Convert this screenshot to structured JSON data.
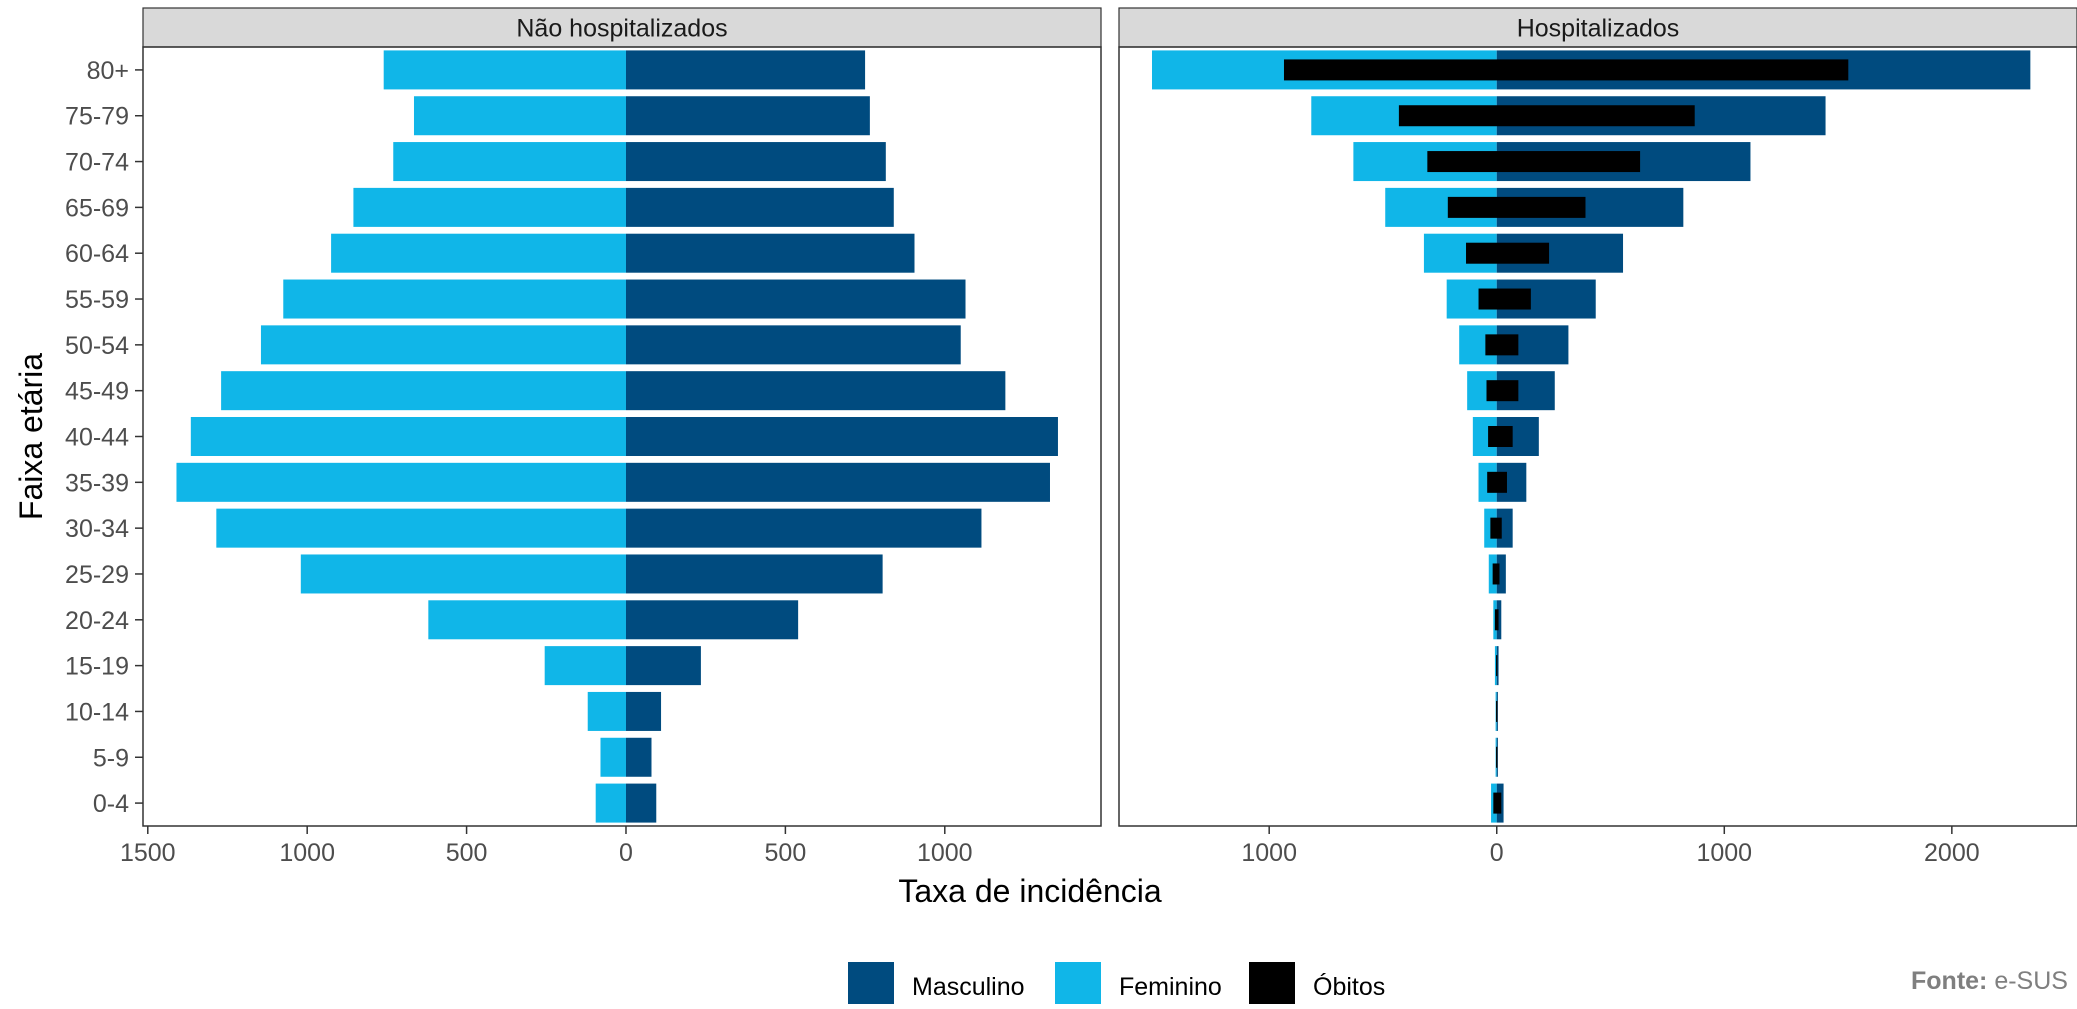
{
  "chart_data": {
    "type": "bar",
    "orientation": "horizontal",
    "layout": "population pyramid, two facets",
    "ylabel": "Faixa etária",
    "xlabel": "Taxa de incidência",
    "categories": [
      "0-4",
      "5-9",
      "10-14",
      "15-19",
      "20-24",
      "25-29",
      "30-34",
      "35-39",
      "40-44",
      "45-49",
      "50-54",
      "55-59",
      "60-64",
      "65-69",
      "70-74",
      "75-79",
      "80+"
    ],
    "legend": {
      "position": "bottom",
      "entries": [
        {
          "label": "Masculino",
          "color": "#004B7F"
        },
        {
          "label": "Feminino",
          "color": "#10B6E8"
        },
        {
          "label": "Óbitos",
          "color": "#000000"
        }
      ]
    },
    "panels": [
      {
        "title": "Não hospitalizados",
        "xlim": [
          -1515,
          1490
        ],
        "ticks": [
          -1500,
          -1000,
          -500,
          0,
          500,
          1000
        ],
        "tick_labels": [
          "1500",
          "1000",
          "500",
          "0",
          "500",
          "1000"
        ],
        "series": [
          {
            "name": "Masculino",
            "values": [
              95,
              80,
              110,
              235,
              540,
              805,
              1115,
              1330,
              1355,
              1190,
              1050,
              1065,
              905,
              840,
              815,
              765,
              750
            ]
          },
          {
            "name": "Feminino",
            "values": [
              95,
              80,
              120,
              255,
              620,
              1020,
              1285,
              1410,
              1365,
              1270,
              1145,
              1075,
              925,
              855,
              730,
              665,
              760
            ]
          }
        ]
      },
      {
        "title": "Hospitalizados",
        "xlim": [
          -1660,
          2550
        ],
        "ticks": [
          -1000,
          0,
          1000,
          2000
        ],
        "tick_labels": [
          "1000",
          "0",
          "1000",
          "2000"
        ],
        "series": [
          {
            "name": "Masculino",
            "values": [
              30,
              5,
              5,
              8,
              20,
              40,
              70,
              130,
              185,
              255,
              315,
              435,
              555,
              820,
              1115,
              1445,
              2345
            ]
          },
          {
            "name": "Feminino",
            "values": [
              25,
              5,
              5,
              8,
              15,
              35,
              55,
              80,
              105,
              130,
              165,
              220,
              320,
              490,
              630,
              815,
              1515
            ]
          },
          {
            "name": "Óbitos",
            "pos": [
              20,
              3,
              3,
              3,
              8,
              12,
              22,
              45,
              70,
              95,
              95,
              150,
              230,
              390,
              630,
              870,
              1545
            ],
            "neg": [
              15,
              3,
              3,
              3,
              8,
              18,
              28,
              42,
              38,
              45,
              50,
              80,
              135,
              215,
              305,
              430,
              935
            ]
          }
        ]
      }
    ],
    "grid": false
  },
  "source": {
    "label": "Fonte:",
    "text": "e-SUS"
  }
}
